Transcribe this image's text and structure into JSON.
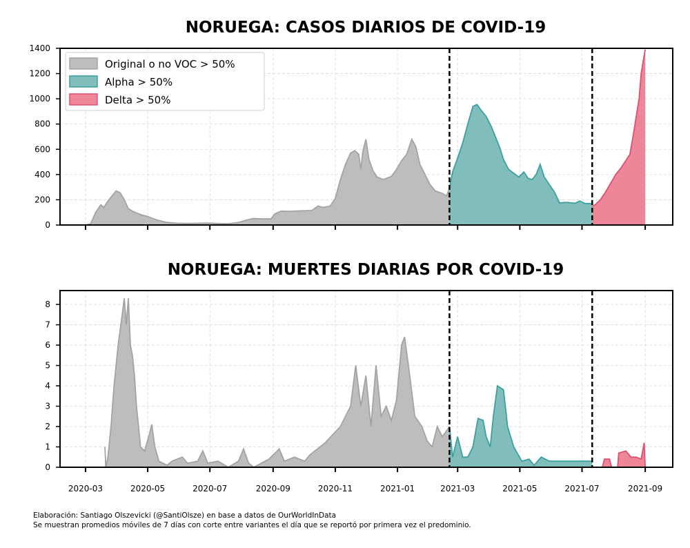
{
  "chart_data": [
    {
      "type": "area",
      "title": "NORUEGA: CASOS DIARIOS DE COVID-19",
      "xlabel": "",
      "ylabel": "",
      "x_unit": "days since 2020-03-01",
      "xlim": [
        -25,
        576
      ],
      "ylim": [
        0,
        1400
      ],
      "yticks": [
        0,
        200,
        400,
        600,
        800,
        1000,
        1200,
        1400
      ],
      "xticks": [
        0,
        61,
        122,
        184,
        245,
        306,
        365,
        426,
        487,
        549
      ],
      "xtick_labels": [],
      "grid": true,
      "legend_position": "top-left",
      "vlines": [
        357,
        497
      ],
      "series": [
        {
          "name": "Original o no VOC > 50%",
          "fill": "#bdbdbd",
          "stroke": "#a3a3a3",
          "points": [
            [
              0,
              0
            ],
            [
              5,
              10
            ],
            [
              10,
              100
            ],
            [
              15,
              160
            ],
            [
              18,
              140
            ],
            [
              22,
              190
            ],
            [
              27,
              240
            ],
            [
              30,
              270
            ],
            [
              34,
              255
            ],
            [
              38,
              200
            ],
            [
              42,
              130
            ],
            [
              46,
              110
            ],
            [
              50,
              95
            ],
            [
              55,
              80
            ],
            [
              60,
              70
            ],
            [
              70,
              40
            ],
            [
              80,
              20
            ],
            [
              90,
              14
            ],
            [
              100,
              12
            ],
            [
              110,
              14
            ],
            [
              120,
              15
            ],
            [
              130,
              12
            ],
            [
              140,
              10
            ],
            [
              150,
              20
            ],
            [
              158,
              40
            ],
            [
              165,
              52
            ],
            [
              175,
              48
            ],
            [
              182,
              50
            ],
            [
              186,
              90
            ],
            [
              192,
              110
            ],
            [
              200,
              108
            ],
            [
              210,
              112
            ],
            [
              222,
              115
            ],
            [
              228,
              150
            ],
            [
              233,
              140
            ],
            [
              240,
              150
            ],
            [
              245,
              210
            ],
            [
              250,
              360
            ],
            [
              255,
              480
            ],
            [
              260,
              570
            ],
            [
              264,
              590
            ],
            [
              268,
              560
            ],
            [
              270,
              440
            ],
            [
              272,
              580
            ],
            [
              275,
              680
            ],
            [
              278,
              520
            ],
            [
              282,
              430
            ],
            [
              286,
              380
            ],
            [
              292,
              360
            ],
            [
              300,
              385
            ],
            [
              305,
              440
            ],
            [
              310,
              510
            ],
            [
              315,
              560
            ],
            [
              320,
              680
            ],
            [
              324,
              620
            ],
            [
              328,
              480
            ],
            [
              333,
              400
            ],
            [
              338,
              320
            ],
            [
              343,
              270
            ],
            [
              350,
              250
            ],
            [
              354,
              230
            ],
            [
              357,
              290
            ]
          ]
        },
        {
          "name": "Alpha > 50%",
          "fill": "#80bdbb",
          "stroke": "#3c9fa0",
          "points": [
            [
              357,
              290
            ],
            [
              360,
              420
            ],
            [
              365,
              530
            ],
            [
              370,
              650
            ],
            [
              375,
              800
            ],
            [
              380,
              940
            ],
            [
              384,
              955
            ],
            [
              388,
              910
            ],
            [
              393,
              860
            ],
            [
              398,
              780
            ],
            [
              402,
              700
            ],
            [
              406,
              620
            ],
            [
              410,
              520
            ],
            [
              415,
              440
            ],
            [
              420,
              410
            ],
            [
              425,
              380
            ],
            [
              430,
              420
            ],
            [
              434,
              370
            ],
            [
              438,
              360
            ],
            [
              442,
              400
            ],
            [
              446,
              480
            ],
            [
              450,
              380
            ],
            [
              455,
              320
            ],
            [
              460,
              260
            ],
            [
              465,
              175
            ],
            [
              472,
              180
            ],
            [
              480,
              172
            ],
            [
              485,
              190
            ],
            [
              490,
              170
            ],
            [
              497,
              170
            ]
          ]
        },
        {
          "name": "Delta > 50%",
          "fill": "#ec8698",
          "stroke": "#e0506e",
          "points": [
            [
              497,
              150
            ],
            [
              500,
              160
            ],
            [
              505,
              200
            ],
            [
              510,
              260
            ],
            [
              515,
              330
            ],
            [
              520,
              400
            ],
            [
              525,
              450
            ],
            [
              530,
              510
            ],
            [
              534,
              560
            ],
            [
              537,
              700
            ],
            [
              540,
              850
            ],
            [
              543,
              1000
            ],
            [
              545,
              1200
            ],
            [
              547,
              1300
            ],
            [
              549,
              1390
            ]
          ]
        }
      ]
    },
    {
      "type": "area",
      "title": "NORUEGA: MUERTES DIARIAS POR COVID-19",
      "xlabel": "",
      "ylabel": "",
      "x_unit": "days since 2020-03-01",
      "xlim": [
        -25,
        576
      ],
      "ylim": [
        0,
        8.68
      ],
      "yticks": [
        0,
        1,
        2,
        3,
        4,
        5,
        6,
        7,
        8
      ],
      "xticks": [
        0,
        61,
        122,
        184,
        245,
        306,
        365,
        426,
        487,
        549
      ],
      "xtick_labels": [
        "2020-03",
        "2020-05",
        "2020-07",
        "2020-09",
        "2020-11",
        "2021-01",
        "2021-03",
        "2021-05",
        "2021-07",
        "2021-09"
      ],
      "grid": true,
      "vlines": [
        357,
        497
      ],
      "series": [
        {
          "name": "Original o no VOC > 50%",
          "fill": "#bdbdbd",
          "stroke": "#a3a3a3",
          "points": [
            [
              19,
              1
            ],
            [
              20,
              0
            ],
            [
              22,
              0.5
            ],
            [
              25,
              2
            ],
            [
              28,
              4
            ],
            [
              32,
              6
            ],
            [
              36,
              7.5
            ],
            [
              38,
              8.3
            ],
            [
              40,
              7
            ],
            [
              42,
              8.3
            ],
            [
              44,
              6
            ],
            [
              46,
              5.5
            ],
            [
              48,
              4.5
            ],
            [
              50,
              3
            ],
            [
              54,
              1
            ],
            [
              58,
              0.8
            ],
            [
              62,
              1.5
            ],
            [
              65,
              2.1
            ],
            [
              68,
              1
            ],
            [
              72,
              0.3
            ],
            [
              80,
              0.1
            ],
            [
              85,
              0.3
            ],
            [
              95,
              0.5
            ],
            [
              100,
              0.2
            ],
            [
              110,
              0.3
            ],
            [
              115,
              0.8
            ],
            [
              120,
              0.2
            ],
            [
              130,
              0.3
            ],
            [
              140,
              0
            ],
            [
              150,
              0.3
            ],
            [
              155,
              0.9
            ],
            [
              160,
              0.2
            ],
            [
              165,
              0
            ],
            [
              180,
              0.4
            ],
            [
              190,
              0.9
            ],
            [
              195,
              0.3
            ],
            [
              205,
              0.5
            ],
            [
              215,
              0.3
            ],
            [
              220,
              0.6
            ],
            [
              235,
              1.2
            ],
            [
              250,
              2
            ],
            [
              260,
              3
            ],
            [
              265,
              5
            ],
            [
              270,
              3
            ],
            [
              275,
              4.5
            ],
            [
              280,
              2
            ],
            [
              285,
              5
            ],
            [
              290,
              2.5
            ],
            [
              295,
              3
            ],
            [
              300,
              2.3
            ],
            [
              305,
              3.3
            ],
            [
              310,
              6
            ],
            [
              313,
              6.4
            ],
            [
              318,
              4.5
            ],
            [
              323,
              2.5
            ],
            [
              330,
              2
            ],
            [
              335,
              1.3
            ],
            [
              340,
              1
            ],
            [
              345,
              2
            ],
            [
              350,
              1.5
            ],
            [
              357,
              2
            ]
          ]
        },
        {
          "name": "Alpha > 50%",
          "fill": "#80bdbb",
          "stroke": "#3c9fa0",
          "points": [
            [
              357,
              2
            ],
            [
              360,
              0.5
            ],
            [
              365,
              1.5
            ],
            [
              370,
              0.5
            ],
            [
              375,
              0.5
            ],
            [
              380,
              1
            ],
            [
              385,
              2.4
            ],
            [
              390,
              2.3
            ],
            [
              393,
              1.5
            ],
            [
              397,
              1
            ],
            [
              400,
              2.5
            ],
            [
              404,
              4
            ],
            [
              410,
              3.8
            ],
            [
              414,
              2
            ],
            [
              420,
              1
            ],
            [
              428,
              0.3
            ],
            [
              435,
              0.4
            ],
            [
              440,
              0.1
            ],
            [
              447,
              0.5
            ],
            [
              455,
              0.3
            ],
            [
              465,
              0.3
            ],
            [
              497,
              0.3
            ]
          ]
        },
        {
          "name": "Delta > 50%",
          "fill": "#ec8698",
          "stroke": "#e0506e",
          "points": [
            [
              497,
              0
            ],
            [
              507,
              0
            ],
            [
              509,
              0.4
            ],
            [
              514,
              0.4
            ],
            [
              516,
              0
            ],
            [
              522,
              0
            ],
            [
              523,
              0.7
            ],
            [
              530,
              0.8
            ],
            [
              535,
              0.5
            ],
            [
              540,
              0.5
            ],
            [
              545,
              0.4
            ],
            [
              548,
              1.2
            ],
            [
              549,
              0
            ]
          ]
        }
      ]
    }
  ],
  "footer": {
    "line1": "Elaboración: Santiago Olszevicki (@SantiOlsze) en base a datos de OurWorldInData",
    "line2": "Se muestran promedios móviles de 7 días con corte entre variantes el día que se reportó por primera vez el predominio."
  }
}
